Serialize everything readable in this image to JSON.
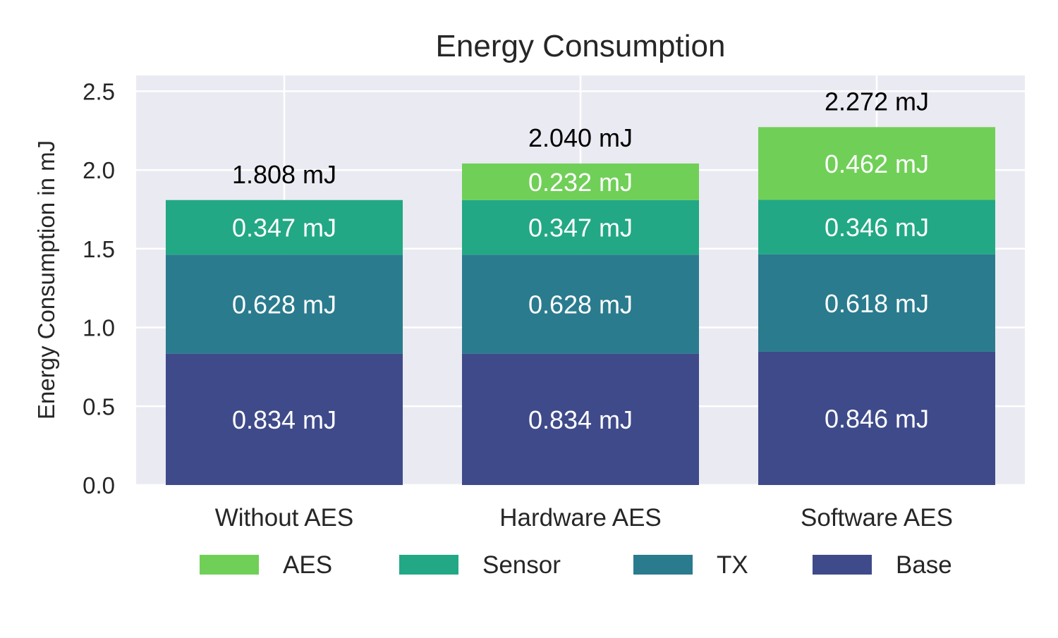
{
  "chart_data": {
    "type": "bar",
    "stacked": true,
    "title": "Energy Consumption",
    "xlabel": "",
    "ylabel": "Energy Consumption in mJ",
    "ylim": [
      0,
      2.6
    ],
    "yticks": [
      0.0,
      0.5,
      1.0,
      1.5,
      2.0,
      2.5
    ],
    "ytick_labels": [
      "0.0",
      "0.5",
      "1.0",
      "1.5",
      "2.0",
      "2.5"
    ],
    "grid": true,
    "legend_position": "bottom",
    "unit_suffix": " mJ",
    "categories": [
      "Without AES",
      "Hardware AES",
      "Software AES"
    ],
    "series": [
      {
        "name": "Base",
        "color": "#3f4a8a",
        "values": [
          0.834,
          0.834,
          0.846
        ],
        "labels": [
          "0.834 mJ",
          "0.834 mJ",
          "0.846 mJ"
        ]
      },
      {
        "name": "TX",
        "color": "#2a7b8e",
        "values": [
          0.628,
          0.628,
          0.618
        ],
        "labels": [
          "0.628 mJ",
          "0.628 mJ",
          "0.618 mJ"
        ]
      },
      {
        "name": "Sensor",
        "color": "#22a884",
        "values": [
          0.347,
          0.347,
          0.346
        ],
        "labels": [
          "0.347 mJ",
          "0.347 mJ",
          "0.346 mJ"
        ]
      },
      {
        "name": "AES",
        "color": "#70cf57",
        "values": [
          0.0,
          0.232,
          0.462
        ],
        "labels": [
          "",
          "0.232 mJ",
          "0.462 mJ"
        ]
      }
    ],
    "totals": [
      1.808,
      2.04,
      2.272
    ],
    "total_labels": [
      "1.808 mJ",
      "2.040 mJ",
      "2.272 mJ"
    ],
    "legend_order": [
      "AES",
      "Sensor",
      "TX",
      "Base"
    ],
    "colors": {
      "plot_background": "#eaeaf2",
      "grid": "#ffffff",
      "text": "#262626",
      "segment_label": "#ffffff",
      "total_label": "#000000"
    }
  }
}
